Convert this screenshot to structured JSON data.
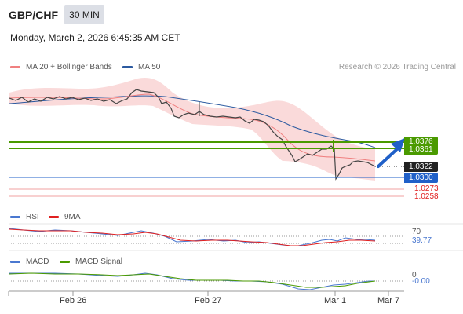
{
  "header": {
    "symbol": "GBP/CHF",
    "timeframe_button": "30 MIN",
    "datetime": "Monday, March 2, 2026 6:45:35 AM CET"
  },
  "legend": {
    "ma20_label": "MA 20 + Bollinger Bands",
    "ma50_label": "MA 50",
    "credit": "Research © 2026 Trading Central",
    "colors": {
      "ma20": "#f08080",
      "ma50": "#2c5aa0",
      "band": "#f9cccc"
    }
  },
  "levels": {
    "resistance_1": "1.0376",
    "resistance_2": "1.0361",
    "last_price": "1.0322",
    "pivot": "1.0300",
    "support_1": "1.0273",
    "support_2": "1.0258",
    "colors": {
      "resistance": "#4a9a00",
      "last": "#222222",
      "pivot": "#2060c8",
      "support": "#e02020"
    }
  },
  "rsi": {
    "label": "RSI",
    "ma_label": "9MA",
    "level": "70",
    "value": "39.77",
    "colors": {
      "rsi": "#4a78d0",
      "ma": "#e02020"
    }
  },
  "macd": {
    "label": "MACD",
    "signal_label": "MACD Signal",
    "zero": "0",
    "value": "-0.00",
    "colors": {
      "macd": "#4a78d0",
      "signal": "#4a9a00"
    }
  },
  "x_axis": [
    "Feb 26",
    "Feb 27",
    "Mar 1",
    "Mar 7"
  ]
}
